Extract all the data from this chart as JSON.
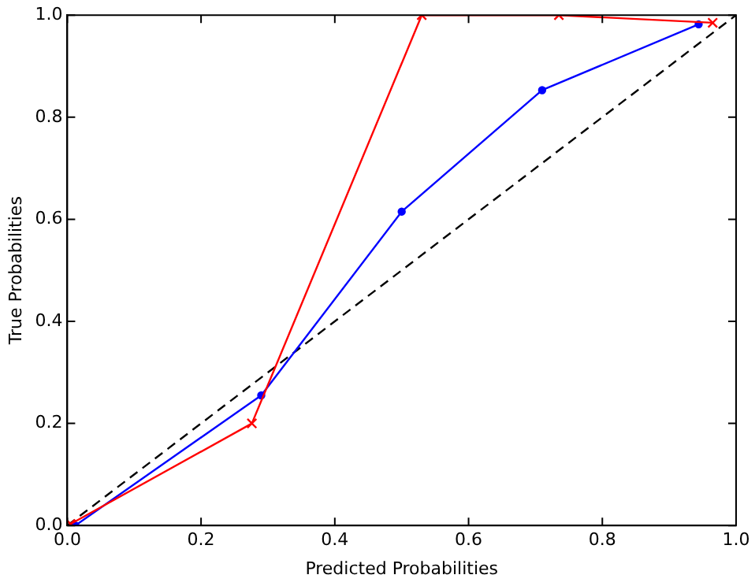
{
  "chart_data": {
    "type": "line",
    "xlabel": "Predicted Probabilities",
    "ylabel": "True Probabilities",
    "xlim": [
      0,
      1
    ],
    "ylim": [
      0,
      1
    ],
    "xticks": [
      {
        "value": 0,
        "label": "0.0"
      },
      0.2,
      0.4,
      0.6,
      0.8,
      {
        "value": 1,
        "label": "1.0"
      }
    ],
    "yticks": [
      {
        "value": 0,
        "label": "0.0"
      },
      0.2,
      0.4,
      0.6,
      0.8,
      {
        "value": 1,
        "label": "1.0"
      }
    ],
    "grid": false,
    "legend": false,
    "series": [
      {
        "color": "#000000",
        "x": [
          0,
          1
        ],
        "values": [
          0,
          1
        ],
        "line_style": "dashed",
        "marker": "none"
      },
      {
        "color": "#0000ff",
        "x": [
          0.012,
          0.29,
          0.5,
          0.71,
          0.944
        ],
        "values": [
          0,
          0.255,
          0.615,
          0.853,
          0.982
        ],
        "line_style": "solid",
        "marker": "circle"
      },
      {
        "color": "#ff0000",
        "x": [
          0.005,
          0.276,
          0.53,
          0.735,
          0.965
        ],
        "values": [
          0.003,
          0.2,
          1.0,
          1.0,
          0.985
        ],
        "line_style": "solid",
        "marker": "cross"
      }
    ]
  }
}
